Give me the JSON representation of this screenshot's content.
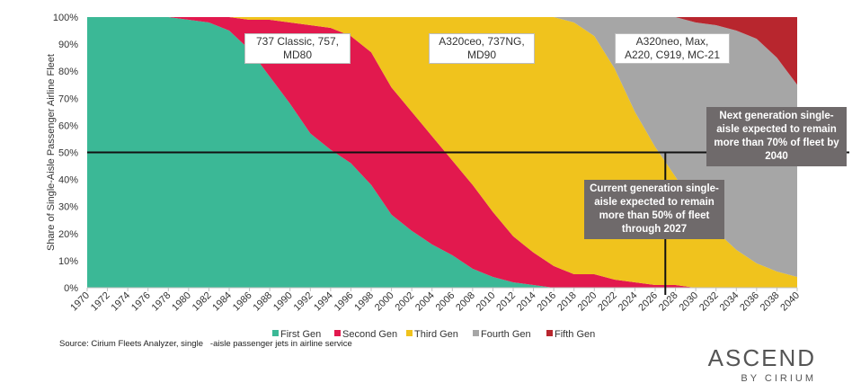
{
  "chart_data": {
    "type": "area",
    "stacked": true,
    "ylabel": "Share of Single-Aisle Passenger Airline Fleet",
    "xlabel": "",
    "ylim": [
      0,
      100
    ],
    "yticks": [
      "0%",
      "10%",
      "20%",
      "30%",
      "40%",
      "50%",
      "60%",
      "70%",
      "80%",
      "90%",
      "100%"
    ],
    "xrange": [
      1970,
      2040
    ],
    "xticks": [
      "1970",
      "1972",
      "1974",
      "1976",
      "1978",
      "1980",
      "1982",
      "1984",
      "1986",
      "1988",
      "1990",
      "1992",
      "1994",
      "1996",
      "1998",
      "2000",
      "2002",
      "2004",
      "2006",
      "2008",
      "2010",
      "2012",
      "2014",
      "2016",
      "2018",
      "2020",
      "2022",
      "2024",
      "2026",
      "2028",
      "2030",
      "2032",
      "2034",
      "2036",
      "2038",
      "2040"
    ],
    "legend_position": "bottom",
    "series": [
      {
        "name": "First Gen",
        "color": "#3bb896",
        "points": [
          [
            1970,
            100
          ],
          [
            1978,
            100
          ],
          [
            1980,
            99
          ],
          [
            1982,
            98
          ],
          [
            1984,
            95
          ],
          [
            1986,
            88
          ],
          [
            1988,
            78
          ],
          [
            1990,
            68
          ],
          [
            1992,
            57
          ],
          [
            1994,
            51
          ],
          [
            1996,
            46
          ],
          [
            1998,
            38
          ],
          [
            2000,
            27
          ],
          [
            2002,
            21
          ],
          [
            2004,
            16
          ],
          [
            2006,
            12
          ],
          [
            2008,
            7
          ],
          [
            2010,
            4
          ],
          [
            2012,
            2
          ],
          [
            2014,
            1
          ],
          [
            2016,
            0
          ],
          [
            2040,
            0
          ]
        ]
      },
      {
        "name": "Second Gen",
        "color": "#e2194e",
        "points": [
          [
            1970,
            0
          ],
          [
            1978,
            0
          ],
          [
            1980,
            1
          ],
          [
            1982,
            2
          ],
          [
            1984,
            5
          ],
          [
            1986,
            11
          ],
          [
            1988,
            21
          ],
          [
            1990,
            30
          ],
          [
            1992,
            40
          ],
          [
            1994,
            45
          ],
          [
            1996,
            47
          ],
          [
            1998,
            49
          ],
          [
            2000,
            47
          ],
          [
            2002,
            44
          ],
          [
            2004,
            40
          ],
          [
            2006,
            35
          ],
          [
            2008,
            31
          ],
          [
            2010,
            24
          ],
          [
            2012,
            17
          ],
          [
            2014,
            12
          ],
          [
            2016,
            8
          ],
          [
            2018,
            5
          ],
          [
            2020,
            5
          ],
          [
            2022,
            3
          ],
          [
            2024,
            2
          ],
          [
            2026,
            1
          ],
          [
            2028,
            1
          ],
          [
            2030,
            0
          ],
          [
            2040,
            0
          ]
        ]
      },
      {
        "name": "Third Gen",
        "color": "#f0c31d",
        "points": [
          [
            1970,
            0
          ],
          [
            1980,
            0
          ],
          [
            1982,
            0
          ],
          [
            1984,
            0
          ],
          [
            1986,
            1
          ],
          [
            1988,
            1
          ],
          [
            1990,
            2
          ],
          [
            1992,
            3
          ],
          [
            1994,
            4
          ],
          [
            1996,
            7
          ],
          [
            1998,
            13
          ],
          [
            2000,
            26
          ],
          [
            2002,
            35
          ],
          [
            2004,
            44
          ],
          [
            2006,
            53
          ],
          [
            2008,
            62
          ],
          [
            2010,
            72
          ],
          [
            2012,
            81
          ],
          [
            2014,
            87
          ],
          [
            2016,
            92
          ],
          [
            2018,
            93
          ],
          [
            2020,
            88
          ],
          [
            2022,
            78
          ],
          [
            2024,
            63
          ],
          [
            2026,
            51
          ],
          [
            2028,
            40
          ],
          [
            2030,
            30
          ],
          [
            2032,
            21
          ],
          [
            2034,
            14
          ],
          [
            2036,
            9
          ],
          [
            2038,
            6
          ],
          [
            2040,
            4
          ]
        ]
      },
      {
        "name": "Fourth Gen",
        "color": "#a6a6a6",
        "points": [
          [
            1970,
            0
          ],
          [
            2014,
            0
          ],
          [
            2016,
            0
          ],
          [
            2018,
            2
          ],
          [
            2020,
            7
          ],
          [
            2022,
            19
          ],
          [
            2024,
            35
          ],
          [
            2026,
            48
          ],
          [
            2028,
            59
          ],
          [
            2030,
            68
          ],
          [
            2032,
            76
          ],
          [
            2034,
            81
          ],
          [
            2036,
            83
          ],
          [
            2038,
            79
          ],
          [
            2040,
            71
          ]
        ]
      },
      {
        "name": "Fifth Gen",
        "color": "#b8262e",
        "points": [
          [
            1970,
            0
          ],
          [
            2026,
            0
          ],
          [
            2028,
            0
          ],
          [
            2030,
            2
          ],
          [
            2032,
            3
          ],
          [
            2034,
            5
          ],
          [
            2036,
            8
          ],
          [
            2038,
            15
          ],
          [
            2040,
            25
          ]
        ]
      }
    ],
    "reference_line": {
      "y": 50,
      "x": 2027
    },
    "annotations": [
      {
        "id": "gen2",
        "text": "737 Classic, 757, MD80"
      },
      {
        "id": "gen3",
        "text": "A320ceo, 737NG, MD90"
      },
      {
        "id": "gen4",
        "text": "A320neo, Max, A220, C919, MC-21"
      },
      {
        "id": "current",
        "text": "Current generation single-aisle expected to remain more than 50% of fleet through 2027"
      },
      {
        "id": "next",
        "text": "Next generation single-aisle expected to remain more than 70% of fleet by 2040"
      }
    ]
  },
  "source": "Source: Cirium Fleets Analyzer, single   -aisle passenger jets in airline service",
  "brand": {
    "name": "ASCEND",
    "sub": "BY CIRIUM"
  }
}
